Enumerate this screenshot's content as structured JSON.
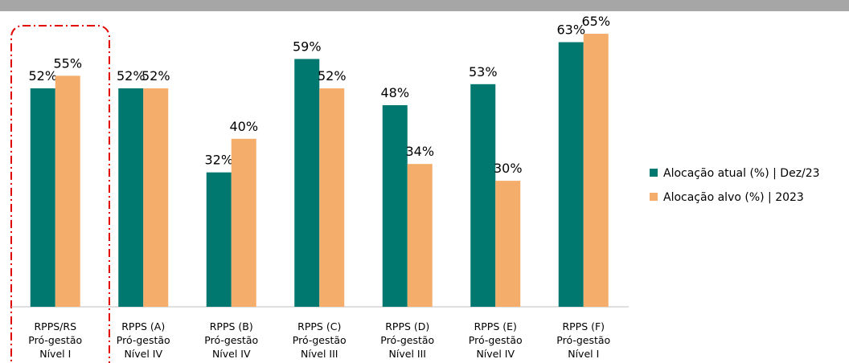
{
  "chart_data": {
    "type": "bar",
    "categories": [
      "RPPS/RS\nPró-gestão\nNível I",
      "RPPS (A)\nPró-gestão\nNível IV",
      "RPPS (B)\nPró-gestão\nNível IV",
      "RPPS (C)\nPró-gestão\nNível III",
      "RPPS (D)\nPró-gestão\nNível III",
      "RPPS (E)\nPró-gestão\nNível IV",
      "RPPS (F)\nPró-gestão\nNível I"
    ],
    "series": [
      {
        "name": "Alocação atual (%) | Dez/23",
        "color": "#00776f",
        "values": [
          52,
          52,
          32,
          59,
          48,
          53,
          63
        ],
        "value_labels": [
          "52%",
          "52%",
          "32%",
          "59%",
          "48%",
          "53%",
          "63%"
        ]
      },
      {
        "name": "Alocação alvo (%) | 2023",
        "color": "#f5ad6b",
        "values": [
          55,
          52,
          40,
          52,
          34,
          30,
          65
        ],
        "value_labels": [
          "55%",
          "52%",
          "40%",
          "52%",
          "34%",
          "30%",
          "65%"
        ]
      }
    ],
    "legend": "right"
  }
}
